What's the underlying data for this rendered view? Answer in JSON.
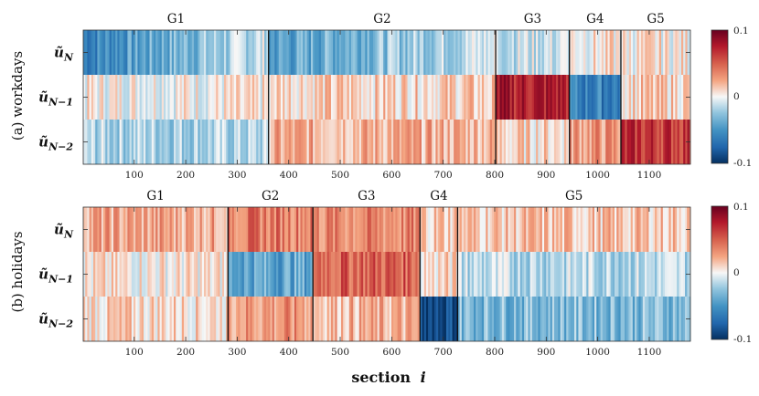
{
  "chart_data": [
    {
      "type": "heatmap",
      "panel_label": "(a) workdays",
      "n_sections": 1180,
      "rows": [
        "ũ_N",
        "ũ_N-1",
        "ũ_N-2"
      ],
      "row_labels": [
        {
          "base": "ũ",
          "sub": "N"
        },
        {
          "base": "ũ",
          "sub": "N−1"
        },
        {
          "base": "ũ",
          "sub": "N−2"
        }
      ],
      "x_ticks": [
        100,
        200,
        300,
        400,
        500,
        600,
        700,
        800,
        900,
        1000,
        1100
      ],
      "x_tick_labels": [
        "100",
        "200",
        "300",
        "400",
        "500",
        "600",
        "700",
        "800",
        "900",
        "1000",
        "1100"
      ],
      "groups": [
        {
          "name": "G1",
          "start": 1,
          "end": 361,
          "values": [
            -0.045,
            0.002,
            -0.018
          ]
        },
        {
          "name": "G2",
          "start": 361,
          "end": 802,
          "values": [
            -0.035,
            0.012,
            0.022
          ]
        },
        {
          "name": "G3",
          "start": 802,
          "end": 945,
          "values": [
            -0.01,
            0.075,
            0.01
          ]
        },
        {
          "name": "G4",
          "start": 945,
          "end": 1045,
          "values": [
            0.004,
            -0.06,
            0.03
          ]
        },
        {
          "name": "G5",
          "start": 1045,
          "end": 1180,
          "values": [
            0.004,
            0.012,
            0.065
          ]
        }
      ],
      "color_range": [
        -0.1,
        0.1
      ],
      "colorbar_ticks": [
        "0.1",
        "0",
        "-0.1"
      ]
    },
    {
      "type": "heatmap",
      "panel_label": "(b) holidays",
      "n_sections": 1180,
      "rows": [
        "ũ_N",
        "ũ_N-1",
        "ũ_N-2"
      ],
      "row_labels": [
        {
          "base": "ũ",
          "sub": "N"
        },
        {
          "base": "ũ",
          "sub": "N−1"
        },
        {
          "base": "ũ",
          "sub": "N−2"
        }
      ],
      "x_ticks": [
        100,
        200,
        300,
        400,
        500,
        600,
        700,
        800,
        900,
        1000,
        1100
      ],
      "x_tick_labels": [
        "100",
        "200",
        "300",
        "400",
        "500",
        "600",
        "700",
        "800",
        "900",
        "1000",
        "1100"
      ],
      "groups": [
        {
          "name": "G1",
          "start": 1,
          "end": 282,
          "values": [
            0.025,
            0.004,
            0.01
          ]
        },
        {
          "name": "G2",
          "start": 282,
          "end": 447,
          "values": [
            0.04,
            -0.04,
            0.03
          ]
        },
        {
          "name": "G3",
          "start": 447,
          "end": 655,
          "values": [
            0.035,
            0.05,
            0.02
          ]
        },
        {
          "name": "G4",
          "start": 655,
          "end": 728,
          "values": [
            0.015,
            0.008,
            -0.085
          ]
        },
        {
          "name": "G5",
          "start": 728,
          "end": 1180,
          "values": [
            0.015,
            -0.015,
            -0.03
          ]
        }
      ],
      "color_range": [
        -0.1,
        0.1
      ],
      "colorbar_ticks": [
        "0.1",
        "0",
        "-0.1"
      ]
    }
  ],
  "xlabel": {
    "text": "section",
    "var": "i"
  }
}
